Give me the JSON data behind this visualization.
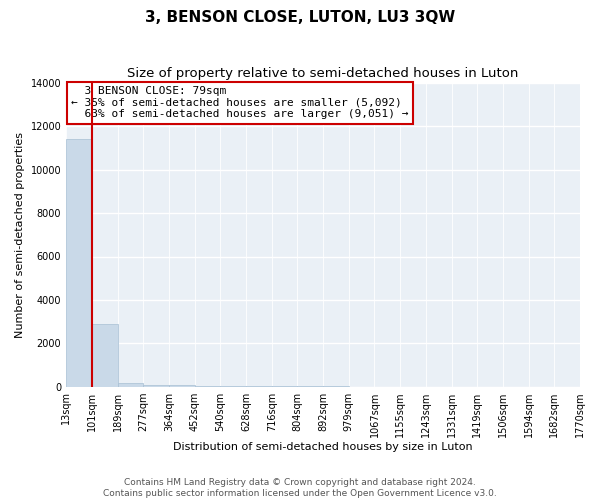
{
  "title": "3, BENSON CLOSE, LUTON, LU3 3QW",
  "subtitle": "Size of property relative to semi-detached houses in Luton",
  "xlabel": "Distribution of semi-detached houses by size in Luton",
  "ylabel": "Number of semi-detached properties",
  "bar_values": [
    11400,
    2900,
    150,
    80,
    50,
    30,
    20,
    12,
    8,
    6,
    4,
    3,
    3,
    2,
    2,
    1,
    1,
    1,
    1,
    1
  ],
  "bar_labels": [
    "13sqm",
    "101sqm",
    "189sqm",
    "277sqm",
    "364sqm",
    "452sqm",
    "540sqm",
    "628sqm",
    "716sqm",
    "804sqm",
    "892sqm",
    "979sqm",
    "1067sqm",
    "1155sqm",
    "1243sqm",
    "1331sqm",
    "1419sqm",
    "1506sqm",
    "1594sqm",
    "1682sqm",
    "1770sqm"
  ],
  "bar_color": "#c9d9e8",
  "bar_edge_color": "#a8c0d4",
  "property_bin_index": 0,
  "property_label": "3 BENSON CLOSE: 79sqm",
  "smaller_pct": "35%",
  "smaller_count": "5,092",
  "larger_pct": "63%",
  "larger_count": "9,051",
  "vline_color": "#cc0000",
  "annotation_box_color": "#cc0000",
  "ylim": [
    0,
    14000
  ],
  "yticks": [
    0,
    2000,
    4000,
    6000,
    8000,
    10000,
    12000,
    14000
  ],
  "footer": "Contains HM Land Registry data © Crown copyright and database right 2024.\nContains public sector information licensed under the Open Government Licence v3.0.",
  "title_fontsize": 11,
  "subtitle_fontsize": 9.5,
  "axis_label_fontsize": 8,
  "tick_fontsize": 7,
  "annotation_fontsize": 8,
  "footer_fontsize": 6.5,
  "bg_color": "#eaf0f6"
}
